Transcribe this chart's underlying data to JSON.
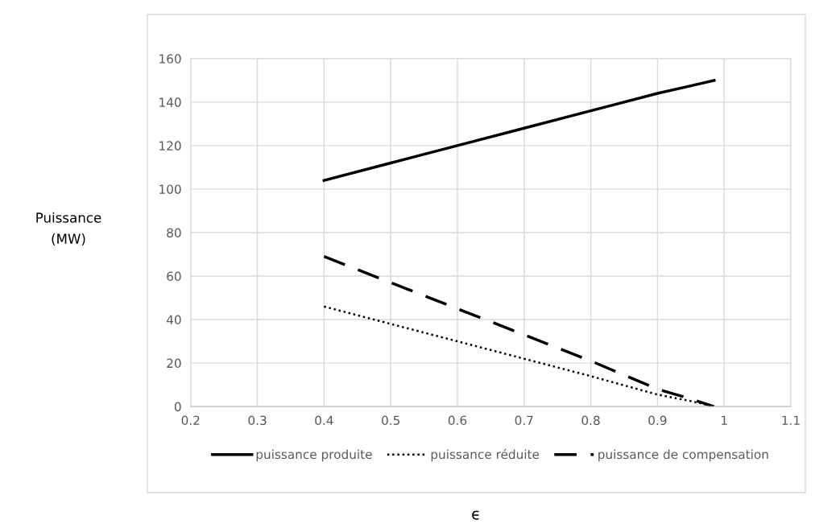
{
  "chart_data": {
    "type": "line",
    "annotations": [
      "ϵ"
    ],
    "ylabel": "Puissance\n(MW)",
    "xlim": [
      0.2,
      1.1
    ],
    "xticks": [
      0.2,
      0.3,
      0.4,
      0.5,
      0.6,
      0.7,
      0.8,
      0.9,
      1,
      1.1
    ],
    "ylim": [
      0,
      160
    ],
    "yticks": [
      0,
      20,
      40,
      60,
      80,
      100,
      120,
      140,
      160
    ],
    "grid": true,
    "legend": "bottom",
    "marker": "none",
    "series": [
      {
        "name": "puissance produite",
        "color": "#000000",
        "line_style": "solid",
        "x": [
          0.4,
          0.5,
          0.6,
          0.7,
          0.8,
          0.9,
          0.95,
          0.985
        ],
        "values": [
          104,
          112,
          120,
          128,
          136,
          144,
          147.5,
          150
        ]
      },
      {
        "name": "puissance réduite",
        "color": "#000000",
        "line_style": "dotted",
        "x": [
          0.4,
          0.5,
          0.6,
          0.7,
          0.8,
          0.9,
          0.95,
          0.985
        ],
        "values": [
          46,
          38,
          30,
          22,
          14,
          5.5,
          2.5,
          0
        ]
      },
      {
        "name": "puissance de compensation",
        "color": "#000000",
        "line_style": "dashed",
        "x": [
          0.4,
          0.5,
          0.6,
          0.7,
          0.8,
          0.9,
          0.95,
          0.985
        ],
        "values": [
          69,
          57,
          45,
          33,
          21,
          8,
          3.5,
          0
        ]
      }
    ]
  }
}
